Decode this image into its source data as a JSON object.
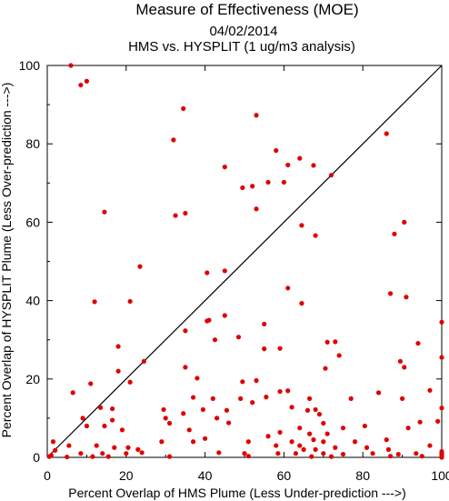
{
  "chart_data": {
    "type": "scatter",
    "title": "Measure of Effectiveness (MOE)",
    "date": "04/02/2014",
    "subtitle": "HMS vs. HYSPLIT  (1 ug/m3 analysis)",
    "xlabel": "Percent Overlap of HMS Plume (Less Under-prediction --->)",
    "ylabel": "Percent Overlap of HYSPLIT Plume (Less Over-prediction --->)",
    "xlim": [
      0,
      100
    ],
    "ylim": [
      0,
      100
    ],
    "xticks": [
      "0",
      "20",
      "40",
      "60",
      "80",
      "100"
    ],
    "yticks": [
      "0",
      "20",
      "40",
      "60",
      "80",
      "100"
    ],
    "point_color": "#e00000",
    "reference_line": "y = x diagonal",
    "grid": false,
    "points": [
      [
        6,
        100
      ],
      [
        8.5,
        95
      ],
      [
        10,
        96
      ],
      [
        34.5,
        89
      ],
      [
        53,
        87.3
      ],
      [
        86,
        82.6
      ],
      [
        32,
        81
      ],
      [
        58,
        78.3
      ],
      [
        64,
        76.3
      ],
      [
        45,
        74.1
      ],
      [
        61,
        74.6
      ],
      [
        67.5,
        74.5
      ],
      [
        72,
        72
      ],
      [
        56,
        70.2
      ],
      [
        52,
        69.2
      ],
      [
        49.5,
        68.8
      ],
      [
        60,
        70.2
      ],
      [
        35,
        62.3
      ],
      [
        14.5,
        62.6
      ],
      [
        32.5,
        61.7
      ],
      [
        53,
        63.4
      ],
      [
        90.5,
        60
      ],
      [
        64.5,
        59.2
      ],
      [
        88,
        57
      ],
      [
        68,
        56.6
      ],
      [
        23.5,
        48.7
      ],
      [
        40.5,
        47.1
      ],
      [
        45,
        47.6
      ],
      [
        61,
        43.2
      ],
      [
        87,
        41.8
      ],
      [
        91,
        40.9
      ],
      [
        12,
        39.7
      ],
      [
        21,
        39.8
      ],
      [
        64.5,
        39.3
      ],
      [
        45,
        36.2
      ],
      [
        41,
        35
      ],
      [
        40.5,
        34.8
      ],
      [
        55,
        34
      ],
      [
        100,
        34.5
      ],
      [
        35,
        32.3
      ],
      [
        48.5,
        30.7
      ],
      [
        42.5,
        30
      ],
      [
        71,
        29.4
      ],
      [
        73,
        29.5
      ],
      [
        94,
        29.1
      ],
      [
        18,
        28.3
      ],
      [
        55,
        27.7
      ],
      [
        59,
        27.8
      ],
      [
        74,
        26
      ],
      [
        100,
        25.5
      ],
      [
        89.5,
        24.5
      ],
      [
        24.5,
        24.5
      ],
      [
        90.5,
        23
      ],
      [
        18,
        22
      ],
      [
        35,
        23
      ],
      [
        70.5,
        22.7
      ],
      [
        49.5,
        19.3
      ],
      [
        53,
        19.6
      ],
      [
        97,
        17.1
      ],
      [
        38,
        20.2
      ],
      [
        11,
        18.8
      ],
      [
        21,
        19.2
      ],
      [
        55.5,
        15.4
      ],
      [
        66.5,
        15
      ],
      [
        61,
        17
      ],
      [
        37,
        15.3
      ],
      [
        77,
        15
      ],
      [
        84,
        16.5
      ],
      [
        6.5,
        16.5
      ],
      [
        59,
        16.8
      ],
      [
        49,
        15
      ],
      [
        42,
        15
      ],
      [
        39.5,
        12.2
      ],
      [
        52,
        14
      ],
      [
        68,
        12.2
      ],
      [
        90,
        15
      ],
      [
        100,
        12.6
      ],
      [
        13.5,
        12.7
      ],
      [
        16.5,
        12.4
      ],
      [
        29.5,
        12.2
      ],
      [
        45.5,
        12
      ],
      [
        62,
        12.8
      ],
      [
        66,
        12
      ],
      [
        69,
        11
      ],
      [
        34.5,
        11.2
      ],
      [
        43,
        10
      ],
      [
        30,
        10
      ],
      [
        9,
        10
      ],
      [
        16.5,
        9.5
      ],
      [
        31,
        8.7
      ],
      [
        46,
        8.8
      ],
      [
        70,
        8.7
      ],
      [
        75,
        7.5
      ],
      [
        80.5,
        8
      ],
      [
        91.5,
        7.5
      ],
      [
        94.5,
        9
      ],
      [
        99,
        9.2
      ],
      [
        10,
        8
      ],
      [
        14.5,
        8
      ],
      [
        36,
        7
      ],
      [
        59,
        6.4
      ],
      [
        64,
        7.5
      ],
      [
        66.5,
        6
      ],
      [
        71,
        6
      ],
      [
        19,
        7
      ],
      [
        40,
        4.8
      ],
      [
        56,
        5.4
      ],
      [
        62,
        4
      ],
      [
        67.5,
        4.5
      ],
      [
        78,
        4
      ],
      [
        86,
        4.5
      ],
      [
        1.5,
        4
      ],
      [
        12.5,
        3
      ],
      [
        29,
        4
      ],
      [
        37,
        4
      ],
      [
        51,
        4
      ],
      [
        64,
        3
      ],
      [
        70,
        4
      ],
      [
        5.5,
        3
      ],
      [
        17,
        2.5
      ],
      [
        20.5,
        2.5
      ],
      [
        23,
        2
      ],
      [
        58,
        3
      ],
      [
        65,
        2
      ],
      [
        68,
        2
      ],
      [
        73,
        2.5
      ],
      [
        81,
        2.5
      ],
      [
        86.5,
        2
      ],
      [
        97,
        3
      ],
      [
        100,
        1.5
      ],
      [
        2,
        1.8
      ],
      [
        8.5,
        1
      ],
      [
        14,
        1
      ],
      [
        20,
        1
      ],
      [
        24,
        1.2
      ],
      [
        43.5,
        1.2
      ],
      [
        50,
        1
      ],
      [
        58.5,
        1
      ],
      [
        63,
        1
      ],
      [
        70,
        1
      ],
      [
        75,
        0.8
      ],
      [
        82.5,
        1
      ],
      [
        89,
        0.8
      ],
      [
        93.5,
        1
      ],
      [
        100,
        0.5
      ],
      [
        0.5,
        0.2
      ],
      [
        1,
        0.5
      ],
      [
        5,
        0.1
      ],
      [
        11.5,
        0.2
      ],
      [
        15.5,
        0.2
      ],
      [
        31,
        0.2
      ],
      [
        51,
        0.3
      ],
      [
        67,
        0.2
      ],
      [
        72,
        0.2
      ],
      [
        87,
        0.3
      ],
      [
        95,
        0.3
      ],
      [
        100,
        0
      ],
      [
        100,
        1
      ]
    ]
  }
}
